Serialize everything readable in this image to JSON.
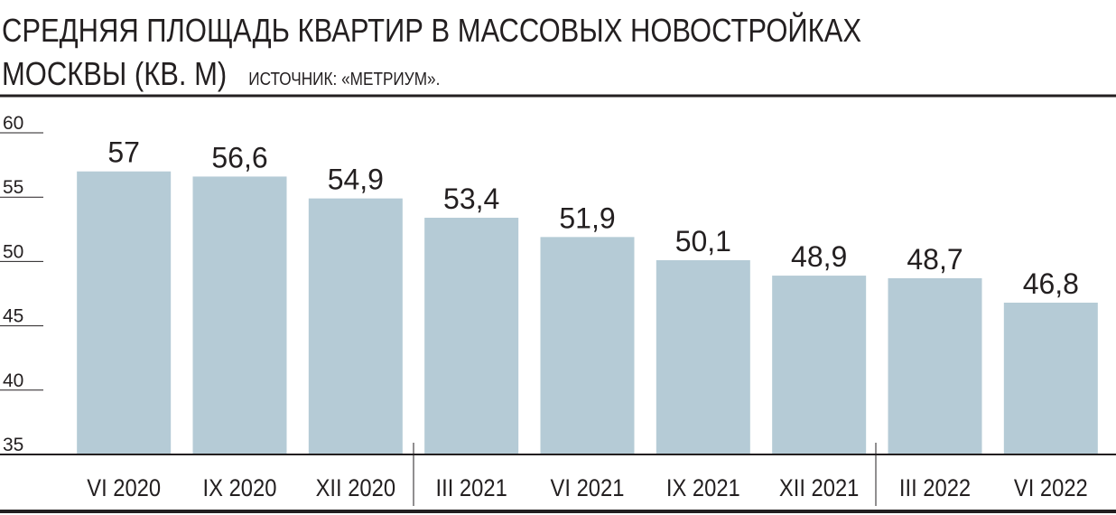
{
  "chart_data": {
    "type": "bar",
    "title": "СРЕДНЯЯ ПЛОЩАДЬ КВАРТИР В МАССОВЫХ НОВОСТРОЙКАХ МОСКВЫ (КВ. М)",
    "subtitle": "ИСТОЧНИК: «МЕТРИУМ».",
    "categories": [
      "VI 2020",
      "IX 2020",
      "XII 2020",
      "III 2021",
      "VI 2021",
      "IX 2021",
      "XII 2021",
      "III 2022",
      "VI 2022"
    ],
    "values": [
      57,
      56.6,
      54.9,
      53.4,
      51.9,
      50.1,
      48.9,
      48.7,
      46.8
    ],
    "value_labels": [
      "57",
      "56,6",
      "54,9",
      "53,4",
      "51,9",
      "50,1",
      "48,9",
      "48,7",
      "46,8"
    ],
    "color": "#b5cbd6",
    "ylim": [
      35,
      60
    ],
    "yticks": [
      35,
      40,
      45,
      50,
      55,
      60
    ]
  }
}
